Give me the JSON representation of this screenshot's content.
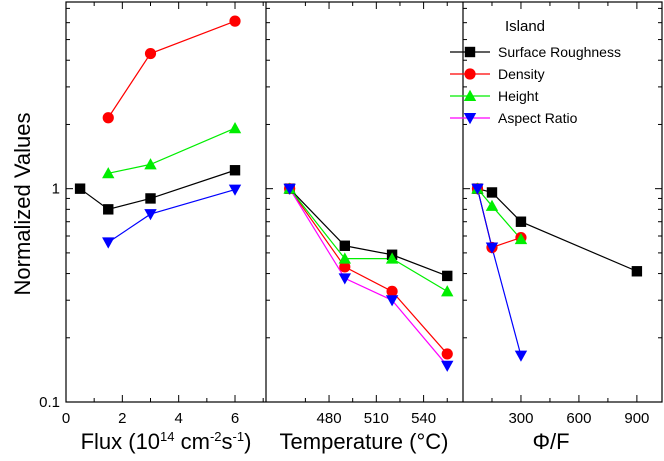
{
  "chart_data": {
    "type": "line",
    "ylabel": "Normalized Values",
    "y_scale": "log",
    "ylim": [
      0.1,
      7.5
    ],
    "y_ticks": [
      {
        "value": 0.1,
        "label": "0.1"
      },
      {
        "value": 1,
        "label": "1"
      }
    ],
    "legend": {
      "title": "Island",
      "placement": "top-right",
      "entries": [
        {
          "name": "Surface Roughness",
          "color": "#000000",
          "marker": "square"
        },
        {
          "name": "Density",
          "color": "#ff0000",
          "marker": "circle"
        },
        {
          "name": "Height",
          "color": "#00ee00",
          "marker": "triangle-up"
        },
        {
          "name": "Aspect Ratio",
          "color": "#0000ff",
          "line_color": "#ff00ff",
          "marker": "triangle-down"
        }
      ]
    },
    "panels": [
      {
        "xlabel": "Flux (10",
        "xlabel_sup1": "14",
        "xlabel_mid": " cm",
        "xlabel_sup2": "-2",
        "xlabel_end": "s",
        "xlabel_sup3": "-1",
        "xlabel_close": ")",
        "xlim": [
          0,
          7.1
        ],
        "x_ticks": [
          {
            "value": 0,
            "label": "0"
          },
          {
            "value": 2,
            "label": "2"
          },
          {
            "value": 4,
            "label": "4"
          },
          {
            "value": 6,
            "label": "6"
          }
        ],
        "series": [
          {
            "key": "roughness",
            "color": "#000000",
            "marker": "square",
            "x": [
              0.5,
              1.5,
              3,
              6
            ],
            "y": [
              1.0,
              0.8,
              0.9,
              1.22
            ]
          },
          {
            "key": "density",
            "color": "#ff0000",
            "marker": "circle",
            "x": [
              1.5,
              3,
              6
            ],
            "y": [
              2.15,
              4.3,
              6.1
            ]
          },
          {
            "key": "height",
            "color": "#00ee00",
            "marker": "triangle-up",
            "x": [
              1.5,
              3,
              6
            ],
            "y": [
              1.18,
              1.3,
              1.92
            ]
          },
          {
            "key": "aspect",
            "color": "#0000ff",
            "marker": "triangle-down",
            "x": [
              1.5,
              3,
              6
            ],
            "y": [
              0.56,
              0.76,
              0.99
            ]
          }
        ]
      },
      {
        "xlabel": "Temperature (°C)",
        "xlim": [
          440,
          565
        ],
        "x_ticks": [
          {
            "value": 480,
            "label": "480"
          },
          {
            "value": 510,
            "label": "510"
          },
          {
            "value": 540,
            "label": "540"
          }
        ],
        "series": [
          {
            "key": "roughness",
            "color": "#000000",
            "marker": "square",
            "x": [
              455,
              490,
              520,
              555
            ],
            "y": [
              1.0,
              0.54,
              0.49,
              0.39
            ]
          },
          {
            "key": "density",
            "color": "#ff0000",
            "marker": "circle",
            "x": [
              455,
              490,
              520,
              555
            ],
            "y": [
              1.0,
              0.43,
              0.33,
              0.168
            ]
          },
          {
            "key": "height",
            "color": "#00ee00",
            "marker": "triangle-up",
            "x": [
              455,
              490,
              520,
              555
            ],
            "y": [
              1.0,
              0.47,
              0.47,
              0.33
            ]
          },
          {
            "key": "aspect",
            "color": "#0000ff",
            "line_color": "#ff00ff",
            "marker": "triangle-down",
            "x": [
              455,
              490,
              520,
              555
            ],
            "y": [
              1.0,
              0.38,
              0.3,
              0.148
            ]
          }
        ]
      },
      {
        "xlabel": "Φ/F",
        "xlim": [
          0,
          1030
        ],
        "x_ticks": [
          {
            "value": 300,
            "label": "300"
          },
          {
            "value": 600,
            "label": "600"
          },
          {
            "value": 900,
            "label": "900"
          }
        ],
        "series": [
          {
            "key": "roughness",
            "color": "#000000",
            "marker": "square",
            "x": [
              75,
              150,
              300,
              900
            ],
            "y": [
              1.0,
              0.96,
              0.7,
              0.41
            ]
          },
          {
            "key": "density",
            "color": "#ff0000",
            "marker": "circle",
            "x": [
              75,
              150,
              300
            ],
            "y": [
              1.0,
              0.53,
              0.59
            ]
          },
          {
            "key": "height",
            "color": "#00ee00",
            "marker": "triangle-up",
            "x": [
              75,
              150,
              300
            ],
            "y": [
              1.0,
              0.83,
              0.58
            ]
          },
          {
            "key": "aspect",
            "color": "#0000ff",
            "marker": "triangle-down",
            "x": [
              75,
              150,
              300
            ],
            "y": [
              1.0,
              0.53,
              0.165
            ]
          }
        ]
      }
    ]
  }
}
